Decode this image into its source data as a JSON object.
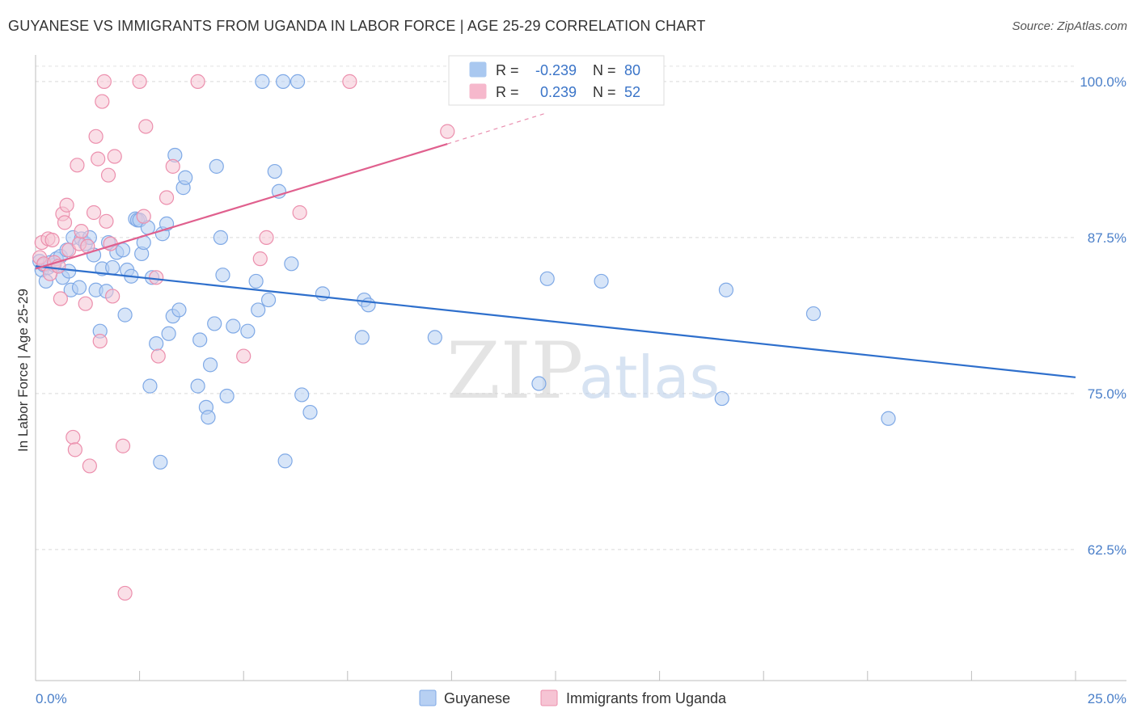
{
  "title": "GUYANESE VS IMMIGRANTS FROM UGANDA IN LABOR FORCE | AGE 25-29 CORRELATION CHART",
  "source": "Source: ZipAtlas.com",
  "watermark": {
    "zip": "ZIP",
    "atlas": "atlas"
  },
  "chart_data": {
    "type": "scatter",
    "ylabel": "In Labor Force | Age 25-29",
    "xlim": [
      0,
      25
    ],
    "ylim": [
      52,
      102
    ],
    "x_tick_labels": [
      {
        "value": 0,
        "label": "0.0%"
      },
      {
        "value": 25,
        "label": "25.0%"
      }
    ],
    "x_minor_ticks": [
      0,
      2.5,
      5,
      7.5,
      10,
      12.5,
      15,
      17.5,
      20,
      22.5,
      25
    ],
    "y_ticks": [
      {
        "value": 100,
        "label": "100.0%"
      },
      {
        "value": 87.5,
        "label": "87.5%"
      },
      {
        "value": 75,
        "label": "75.0%"
      },
      {
        "value": 62.5,
        "label": "62.5%"
      }
    ],
    "grid": true,
    "legend_position": "top-center",
    "legend": [
      {
        "r_label": "R =",
        "r_value": "-0.239",
        "n_label": "N =",
        "n_value": "80",
        "color": "#a9c8f0"
      },
      {
        "r_label": "R =",
        "r_value": "0.239",
        "n_label": "N =",
        "n_value": "52",
        "color": "#f6b8cc"
      }
    ],
    "series": [
      {
        "name": "Guyanese",
        "color": "#7fa9e6",
        "fill": "#b7d0f3",
        "line_color": "#2e6fcc",
        "trend": {
          "x1": 0,
          "y1": 85.2,
          "x2": 25,
          "y2": 76.3
        },
        "points": [
          [
            0.1,
            85.6
          ],
          [
            0.15,
            84.9
          ],
          [
            0.2,
            85.3
          ],
          [
            0.25,
            84.0
          ],
          [
            0.3,
            85.1
          ],
          [
            0.35,
            85.5
          ],
          [
            0.45,
            85.3
          ],
          [
            0.5,
            85.8
          ],
          [
            0.6,
            86.0
          ],
          [
            0.65,
            84.3
          ],
          [
            0.75,
            86.5
          ],
          [
            0.8,
            84.8
          ],
          [
            0.85,
            83.3
          ],
          [
            0.9,
            87.5
          ],
          [
            1.05,
            83.5
          ],
          [
            1.1,
            87.4
          ],
          [
            1.2,
            87.0
          ],
          [
            1.3,
            87.5
          ],
          [
            1.4,
            86.1
          ],
          [
            1.45,
            83.3
          ],
          [
            1.55,
            80.0
          ],
          [
            1.6,
            85.0
          ],
          [
            1.7,
            83.2
          ],
          [
            1.75,
            87.1
          ],
          [
            1.85,
            85.1
          ],
          [
            1.95,
            86.3
          ],
          [
            2.1,
            86.5
          ],
          [
            2.15,
            81.3
          ],
          [
            2.2,
            84.9
          ],
          [
            2.3,
            84.4
          ],
          [
            2.4,
            89.0
          ],
          [
            2.45,
            88.9
          ],
          [
            2.5,
            88.9
          ],
          [
            2.55,
            86.2
          ],
          [
            2.6,
            87.1
          ],
          [
            2.7,
            88.3
          ],
          [
            2.75,
            75.6
          ],
          [
            2.8,
            84.3
          ],
          [
            2.9,
            79.0
          ],
          [
            3.0,
            69.5
          ],
          [
            3.05,
            87.8
          ],
          [
            3.15,
            88.6
          ],
          [
            3.2,
            79.8
          ],
          [
            3.3,
            81.2
          ],
          [
            3.35,
            94.1
          ],
          [
            3.45,
            81.7
          ],
          [
            3.55,
            91.5
          ],
          [
            3.6,
            92.3
          ],
          [
            3.9,
            75.6
          ],
          [
            3.95,
            79.3
          ],
          [
            4.1,
            73.9
          ],
          [
            4.15,
            73.1
          ],
          [
            4.2,
            77.3
          ],
          [
            4.3,
            80.6
          ],
          [
            4.35,
            93.2
          ],
          [
            4.45,
            87.5
          ],
          [
            4.5,
            84.5
          ],
          [
            4.6,
            74.8
          ],
          [
            4.75,
            80.4
          ],
          [
            5.1,
            80.0
          ],
          [
            5.3,
            84.0
          ],
          [
            5.35,
            81.7
          ],
          [
            5.45,
            100.0
          ],
          [
            5.6,
            82.5
          ],
          [
            5.75,
            92.8
          ],
          [
            5.85,
            91.2
          ],
          [
            5.95,
            100.0
          ],
          [
            6.0,
            69.6
          ],
          [
            6.15,
            85.4
          ],
          [
            6.3,
            100.0
          ],
          [
            6.4,
            74.9
          ],
          [
            6.6,
            73.5
          ],
          [
            6.9,
            83.0
          ],
          [
            7.85,
            79.5
          ],
          [
            7.9,
            82.5
          ],
          [
            8.0,
            82.1
          ],
          [
            9.6,
            79.5
          ],
          [
            12.1,
            75.8
          ],
          [
            12.3,
            84.2
          ],
          [
            13.6,
            84.0
          ],
          [
            16.5,
            74.6
          ],
          [
            16.6,
            83.3
          ],
          [
            18.7,
            81.4
          ],
          [
            20.5,
            73.0
          ]
        ]
      },
      {
        "name": "Immigrants from Uganda",
        "color": "#ec8fad",
        "fill": "#f6c4d4",
        "line_color": "#e0608e",
        "trend": {
          "x1": 0,
          "y1": 85.0,
          "x2": 9.9,
          "y2": 95.0
        },
        "trend_dashed": {
          "x1": 9.9,
          "y1": 95.0,
          "x2": 12.3,
          "y2": 97.5
        },
        "points": [
          [
            0.1,
            85.9
          ],
          [
            0.15,
            87.1
          ],
          [
            0.2,
            85.4
          ],
          [
            0.3,
            87.4
          ],
          [
            0.35,
            84.6
          ],
          [
            0.4,
            87.3
          ],
          [
            0.45,
            85.5
          ],
          [
            0.55,
            85.2
          ],
          [
            0.6,
            82.6
          ],
          [
            0.65,
            89.4
          ],
          [
            0.7,
            88.7
          ],
          [
            0.75,
            90.1
          ],
          [
            0.8,
            86.5
          ],
          [
            0.9,
            71.5
          ],
          [
            0.95,
            70.5
          ],
          [
            1.0,
            93.3
          ],
          [
            1.05,
            87.0
          ],
          [
            1.1,
            88.0
          ],
          [
            1.2,
            82.2
          ],
          [
            1.25,
            86.8
          ],
          [
            1.3,
            69.2
          ],
          [
            1.4,
            89.5
          ],
          [
            1.45,
            95.6
          ],
          [
            1.5,
            93.8
          ],
          [
            1.55,
            79.2
          ],
          [
            1.6,
            98.4
          ],
          [
            1.65,
            100.0
          ],
          [
            1.7,
            88.8
          ],
          [
            1.75,
            92.5
          ],
          [
            1.8,
            87.0
          ],
          [
            1.85,
            82.8
          ],
          [
            1.9,
            94.0
          ],
          [
            2.1,
            70.8
          ],
          [
            2.15,
            59.0
          ],
          [
            2.5,
            100.0
          ],
          [
            2.6,
            89.2
          ],
          [
            2.65,
            96.4
          ],
          [
            2.9,
            84.3
          ],
          [
            2.95,
            78.0
          ],
          [
            3.15,
            90.7
          ],
          [
            3.3,
            93.2
          ],
          [
            3.9,
            100.0
          ],
          [
            5.0,
            78.0
          ],
          [
            5.4,
            85.8
          ],
          [
            5.55,
            87.5
          ],
          [
            6.35,
            89.5
          ],
          [
            7.55,
            100.0
          ],
          [
            9.9,
            96.0
          ]
        ]
      }
    ]
  }
}
